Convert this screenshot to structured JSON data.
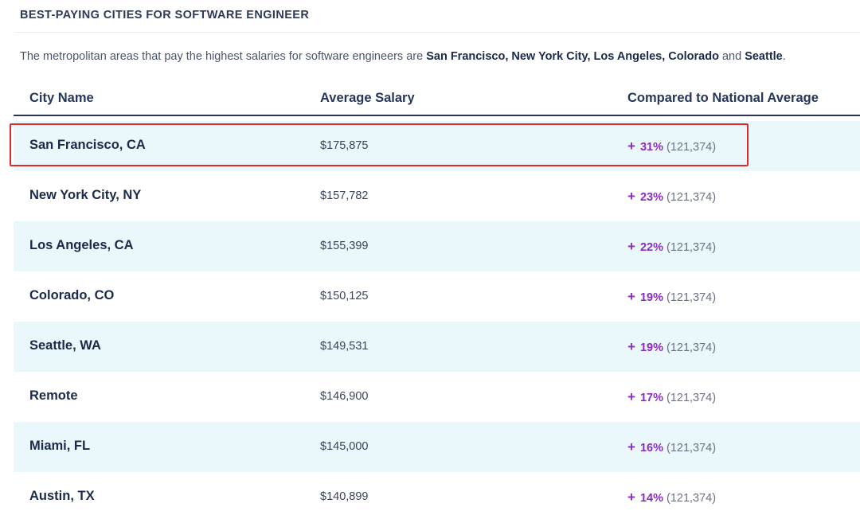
{
  "section_title": "BEST-PAYING CITIES FOR SOFTWARE ENGINEER",
  "intro": {
    "prefix": "The metropolitan areas that pay the highest salaries for software engineers are ",
    "city1": "San Francisco,",
    "city2": "New York City,",
    "city3": "Los Angeles,",
    "city4": "Colorado",
    "and": " and ",
    "city5": "Seattle",
    "suffix": "."
  },
  "table": {
    "headers": {
      "city": "City Name",
      "salary": "Average Salary",
      "compare": "Compared to National Average"
    },
    "plus_symbol": "+",
    "rows": [
      {
        "city": "San Francisco, CA",
        "salary": "$175,875",
        "pct": "31%",
        "national": "(121,374)"
      },
      {
        "city": "New York City, NY",
        "salary": "$157,782",
        "pct": "23%",
        "national": "(121,374)"
      },
      {
        "city": "Los Angeles, CA",
        "salary": "$155,399",
        "pct": "22%",
        "national": "(121,374)"
      },
      {
        "city": "Colorado, CO",
        "salary": "$150,125",
        "pct": "19%",
        "national": "(121,374)"
      },
      {
        "city": "Seattle, WA",
        "salary": "$149,531",
        "pct": "19%",
        "national": "(121,374)"
      },
      {
        "city": "Remote",
        "salary": "$146,900",
        "pct": "17%",
        "national": "(121,374)"
      },
      {
        "city": "Miami, FL",
        "salary": "$145,000",
        "pct": "16%",
        "national": "(121,374)"
      },
      {
        "city": "Austin, TX",
        "salary": "$140,899",
        "pct": "14%",
        "national": "(121,374)"
      }
    ]
  },
  "colors": {
    "accent_purple": "#8a2bc4",
    "row_shade": "#eaf7fb",
    "highlight_red": "#e0292b"
  }
}
